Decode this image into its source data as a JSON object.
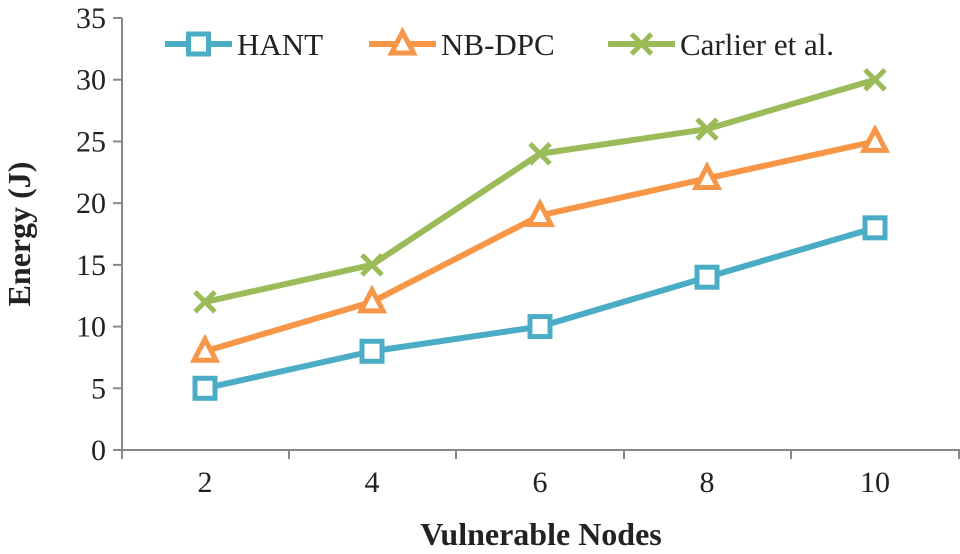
{
  "chart_data": {
    "type": "line",
    "title": "",
    "xlabel": "Vulnerable Nodes",
    "ylabel": "Energy (J)",
    "x": [
      2,
      4,
      6,
      8,
      10
    ],
    "x_tick_labels": [
      "2",
      "4",
      "6",
      "8",
      "10"
    ],
    "ylim": [
      0,
      35
    ],
    "y_ticks": [
      0,
      5,
      10,
      15,
      20,
      25,
      30,
      35
    ],
    "y_tick_labels": [
      "0",
      "5",
      "10",
      "15",
      "20",
      "25",
      "30",
      "35"
    ],
    "grid": false,
    "legend_position": "top",
    "series": [
      {
        "name": "HANT",
        "values": [
          5,
          8,
          10,
          14,
          18
        ],
        "color": "#4BACC6",
        "marker": "square"
      },
      {
        "name": "NB-DPC",
        "values": [
          8,
          12,
          19,
          22,
          25
        ],
        "color": "#F79646",
        "marker": "triangle"
      },
      {
        "name": "Carlier et al.",
        "values": [
          12,
          15,
          24,
          26,
          30
        ],
        "color": "#9BBB59",
        "marker": "x"
      }
    ]
  }
}
